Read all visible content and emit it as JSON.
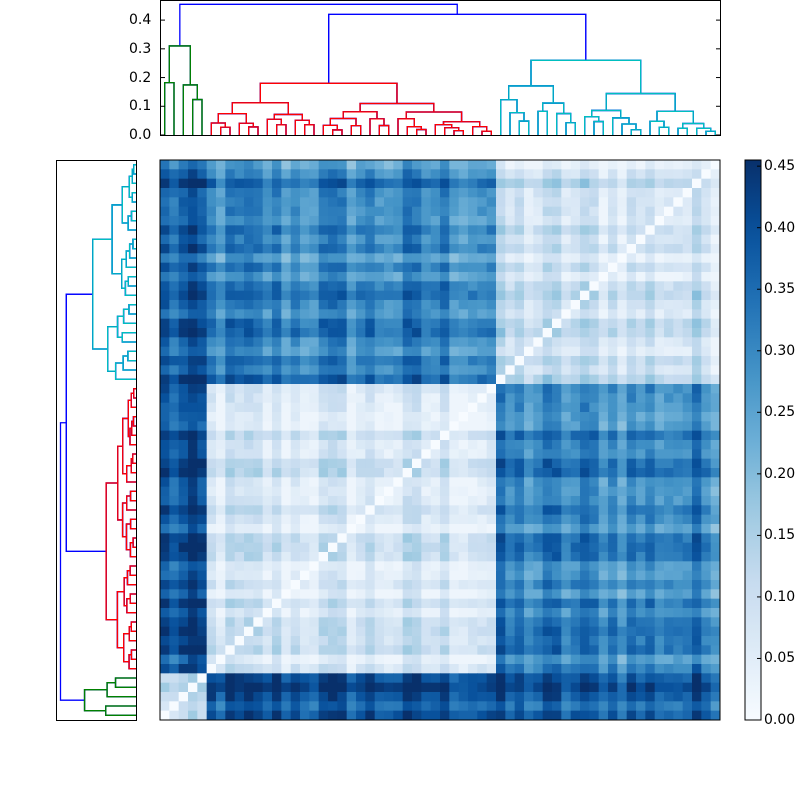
{
  "chart_data": {
    "type": "heatmap",
    "title": "",
    "description": "Clustered distance-matrix heatmap with top and left dendrograms and colorbar (Blues colormap)",
    "n_leaves": 60,
    "clusters": [
      {
        "name": "green",
        "color": "#008000",
        "leaf_count": 5
      },
      {
        "name": "red",
        "color": "#ff0000",
        "leaf_count": 31
      },
      {
        "name": "cyan",
        "color": "#00bfbf",
        "leaf_count": 24
      }
    ],
    "link_color_above_threshold": "#0000ff",
    "top_dendrogram": {
      "ylabel": "",
      "ylim": [
        0.0,
        0.47
      ],
      "yticks": [
        "0.0",
        "0.1",
        "0.2",
        "0.3",
        "0.4"
      ],
      "yticks_values": [
        0.0,
        0.1,
        0.2,
        0.3,
        0.4
      ],
      "root_height": 0.455,
      "red_cyan_merge_height": 0.42,
      "green_root_height": 0.31,
      "red_root_height": 0.18,
      "cyan_root_height": 0.26
    },
    "colorbar": {
      "cmap": "Blues",
      "vmin": 0.0,
      "vmax": 0.455,
      "ticks": [
        "0.00",
        "0.05",
        "0.10",
        "0.15",
        "0.20",
        "0.25",
        "0.30",
        "0.35",
        "0.40",
        "0.45"
      ],
      "ticks_values": [
        0.0,
        0.05,
        0.1,
        0.15,
        0.2,
        0.25,
        0.3,
        0.35,
        0.4,
        0.45
      ]
    },
    "block_means": {
      "order": [
        "green",
        "red",
        "cyan"
      ],
      "matrix": [
        [
          0.1,
          0.38,
          0.36
        ],
        [
          0.38,
          0.08,
          0.3
        ],
        [
          0.36,
          0.3,
          0.1
        ]
      ]
    }
  }
}
